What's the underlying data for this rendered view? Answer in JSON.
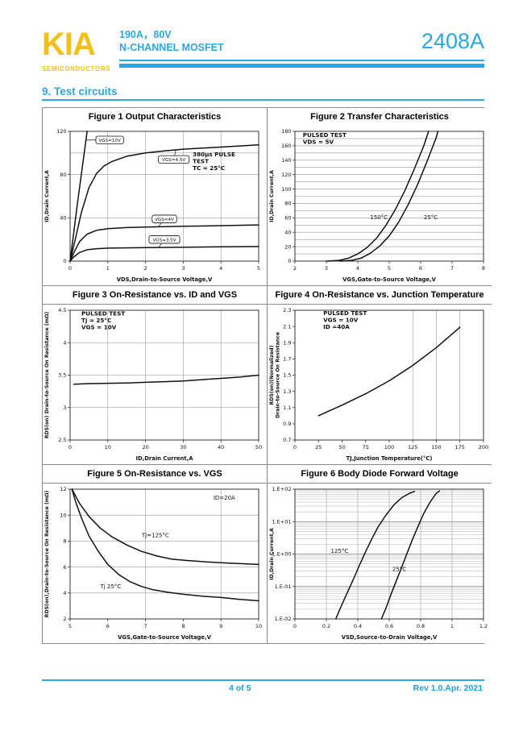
{
  "header": {
    "logo": "KIA",
    "logo_sub": "SEMICONDUCTORS",
    "subtitle_line1": "190A，80V",
    "subtitle_line2": "N-CHANNEL MOSFET",
    "part_number": "2408A",
    "accent_color": "#29A8E0",
    "logo_color": "#F2C118"
  },
  "section": {
    "title": "9. Test circuits"
  },
  "footer": {
    "page": "4 of 5",
    "rev": "Rev 1.0.Apr. 2021"
  },
  "chart_data": [
    {
      "type": "line",
      "title": "Figure 1 Output Characteristics",
      "xlabel": "VDS,Drain-to-Source Voltage,V",
      "ylabel": "ID,Drain Current,A",
      "xlim": [
        0,
        5
      ],
      "ylim": [
        0,
        120
      ],
      "xticks": [
        0,
        1,
        2,
        3,
        4,
        5
      ],
      "yticks": [
        0,
        40,
        80,
        120
      ],
      "xgrid": [
        1,
        2,
        3,
        4
      ],
      "ygrid": [
        40,
        80,
        100
      ],
      "yscale": "linear",
      "series": [
        {
          "name": "VGS=10V",
          "points": [
            [
              0,
              0
            ],
            [
              0.2,
              55
            ],
            [
              0.45,
              120
            ]
          ]
        },
        {
          "name": "VGS=4.5V",
          "points": [
            [
              0,
              0
            ],
            [
              0.15,
              22
            ],
            [
              0.3,
              45
            ],
            [
              0.5,
              68
            ],
            [
              0.7,
              81
            ],
            [
              0.9,
              88
            ],
            [
              1.1,
              92
            ],
            [
              1.5,
              97
            ],
            [
              2,
              100
            ],
            [
              2.5,
              102
            ],
            [
              3,
              103.5
            ],
            [
              3.5,
              104.5
            ],
            [
              4,
              105.5
            ],
            [
              4.5,
              106.5
            ],
            [
              5,
              107.5
            ]
          ]
        },
        {
          "name": "VGS=4V",
          "points": [
            [
              0,
              0
            ],
            [
              0.1,
              8
            ],
            [
              0.25,
              18
            ],
            [
              0.45,
              25
            ],
            [
              0.7,
              28.5
            ],
            [
              1,
              30
            ],
            [
              1.5,
              31
            ],
            [
              2,
              31.5
            ],
            [
              3,
              32.2
            ],
            [
              4,
              32.8
            ],
            [
              5,
              33.5
            ]
          ]
        },
        {
          "name": "VGS=3.5V",
          "points": [
            [
              0,
              0
            ],
            [
              0.1,
              4
            ],
            [
              0.25,
              8
            ],
            [
              0.45,
              10.5
            ],
            [
              0.7,
              11.5
            ],
            [
              1,
              12
            ],
            [
              2,
              12.5
            ],
            [
              3,
              12.8
            ],
            [
              4,
              13.2
            ],
            [
              5,
              13.5
            ]
          ]
        }
      ],
      "ann": {
        "lines": [
          "380μs PULSE",
          "TEST",
          "TC = 25°C"
        ],
        "x": 3.25,
        "y": 97
      },
      "callouts": [
        {
          "text": "VGS=10V",
          "x": 1.05,
          "y": 112,
          "tx": 0.42,
          "ty": 112
        },
        {
          "text": "VGS=4.5V",
          "x": 2.75,
          "y": 94,
          "tx": 2.8,
          "ty": 102.5
        },
        {
          "text": "VGS=4V",
          "x": 2.5,
          "y": 39,
          "tx": 2.35,
          "ty": 32
        },
        {
          "text": "VGS=3.5V",
          "x": 2.5,
          "y": 20,
          "tx": 2.35,
          "ty": 12.7
        }
      ]
    },
    {
      "type": "line",
      "title": "Figure 2 Transfer Characteristics",
      "xlabel": "VGS,Gate-to-Source Voltage,V",
      "ylabel": "ID,Drain Current,A",
      "xlim": [
        2,
        8
      ],
      "ylim": [
        0,
        180
      ],
      "xticks": [
        2,
        3,
        4,
        5,
        6,
        7,
        8
      ],
      "yticks": [
        0,
        20,
        40,
        60,
        80,
        100,
        120,
        140,
        160,
        180
      ],
      "ygrid_step": 10,
      "yscale": "linear",
      "series": [
        {
          "name": "150°C",
          "points": [
            [
              3.0,
              0
            ],
            [
              3.4,
              1
            ],
            [
              3.7,
              4
            ],
            [
              4,
              10
            ],
            [
              4.3,
              19
            ],
            [
              4.6,
              32
            ],
            [
              4.9,
              50
            ],
            [
              5.2,
              72
            ],
            [
              5.5,
              98
            ],
            [
              5.8,
              128
            ],
            [
              6.1,
              160
            ],
            [
              6.25,
              180
            ]
          ]
        },
        {
          "name": "25°C",
          "points": [
            [
              3.45,
              0
            ],
            [
              3.8,
              1
            ],
            [
              4.1,
              4
            ],
            [
              4.4,
              11
            ],
            [
              4.7,
              21
            ],
            [
              5,
              35
            ],
            [
              5.3,
              54
            ],
            [
              5.6,
              78
            ],
            [
              5.9,
              106
            ],
            [
              6.2,
              138
            ],
            [
              6.5,
              172
            ],
            [
              6.55,
              180
            ]
          ]
        }
      ],
      "ann": {
        "lines": [
          "PULSED TEST",
          "VDS = 5V"
        ],
        "x": 2.25,
        "y": 172
      },
      "labels": [
        {
          "text": "150°C",
          "x": 4.95,
          "y": 58,
          "anchor": "end"
        },
        {
          "text": "25°C",
          "x": 6.1,
          "y": 58,
          "anchor": "start"
        }
      ]
    },
    {
      "type": "line",
      "title": "Figure 3 On-Resistance vs. ID and VGS",
      "xlabel": "ID,Drain Current,A",
      "ylabel": "RDS(on) Drain-to-Source On Resistance (mΩ)",
      "xlim": [
        0,
        50
      ],
      "ylim": [
        2.5,
        4.5
      ],
      "xticks": [
        0,
        10,
        20,
        30,
        40,
        50
      ],
      "yticks": [
        2.5,
        3,
        3.5,
        4,
        4.5
      ],
      "xgrid": [
        10,
        20,
        30,
        40
      ],
      "ygrid": [
        3,
        3.5,
        4
      ],
      "yscale": "linear",
      "series": [
        {
          "name": "RDS(on)",
          "points": [
            [
              1,
              3.36
            ],
            [
              5,
              3.37
            ],
            [
              10,
              3.375
            ],
            [
              15,
              3.38
            ],
            [
              20,
              3.39
            ],
            [
              25,
              3.4
            ],
            [
              30,
              3.41
            ],
            [
              35,
              3.43
            ],
            [
              40,
              3.45
            ],
            [
              45,
              3.47
            ],
            [
              50,
              3.5
            ]
          ]
        }
      ],
      "ann": {
        "lines": [
          "PULSED TEST",
          "Tj = 25°C",
          "VGS = 10V"
        ],
        "x": 3,
        "y": 4.42
      }
    },
    {
      "type": "line",
      "title": "Figure 4 On-Resistance vs. Junction Temperature",
      "xlabel": "TJ,Junction Temperature(°C)",
      "ylabel": "RDS(on)(Normalized)",
      "ylabel2": "Drain-to-Source On Resistance",
      "xlim": [
        0,
        200
      ],
      "ylim": [
        0.7,
        2.3
      ],
      "xticks": [
        0,
        25,
        50,
        75,
        100,
        125,
        150,
        175,
        200
      ],
      "yticks": [
        0.7,
        0.9,
        1.1,
        1.3,
        1.5,
        1.7,
        1.9,
        2.1,
        2.3
      ],
      "xgrid": [
        125,
        150,
        175
      ],
      "yscale": "linear",
      "series": [
        {
          "name": "normalized RDS(on)",
          "points": [
            [
              25,
              1.0
            ],
            [
              50,
              1.13
            ],
            [
              75,
              1.27
            ],
            [
              100,
              1.43
            ],
            [
              125,
              1.62
            ],
            [
              150,
              1.84
            ],
            [
              175,
              2.09
            ]
          ]
        }
      ],
      "ann": {
        "lines": [
          "PULSED TEST",
          "VGS = 10V",
          "ID =40A"
        ],
        "x": 30,
        "y": 2.24
      }
    },
    {
      "type": "line",
      "title": "Figure 5 On-Resistance vs. VGS",
      "xlabel": "VGS,Gate-to-Source Voltage,V",
      "ylabel": "RDS(on),Drain-to-Source On Resistance (mΩ)",
      "xlim": [
        5,
        10
      ],
      "ylim": [
        2,
        12
      ],
      "xticks": [
        5,
        6,
        7,
        8,
        9,
        10
      ],
      "yticks": [
        2,
        4,
        6,
        8,
        10,
        12
      ],
      "xgrid": [
        7,
        9
      ],
      "ygrid": [
        4,
        6,
        8,
        10
      ],
      "yscale": "linear",
      "series": [
        {
          "name": "Tj=125°C",
          "points": [
            [
              5.05,
              12
            ],
            [
              5.25,
              10.9
            ],
            [
              5.5,
              9.9
            ],
            [
              5.8,
              9.0
            ],
            [
              6.1,
              8.35
            ],
            [
              6.5,
              7.7
            ],
            [
              6.9,
              7.2
            ],
            [
              7.3,
              6.85
            ],
            [
              7.7,
              6.6
            ],
            [
              8.1,
              6.5
            ],
            [
              8.6,
              6.4
            ],
            [
              9.2,
              6.3
            ],
            [
              10,
              6.2
            ]
          ]
        },
        {
          "name": "Tj 25°C",
          "points": [
            [
              5.05,
              12
            ],
            [
              5.15,
              11
            ],
            [
              5.3,
              9.8
            ],
            [
              5.5,
              8.4
            ],
            [
              5.75,
              7.2
            ],
            [
              6.0,
              6.2
            ],
            [
              6.3,
              5.4
            ],
            [
              6.6,
              4.85
            ],
            [
              6.9,
              4.5
            ],
            [
              7.2,
              4.25
            ],
            [
              7.6,
              4.05
            ],
            [
              8,
              3.9
            ],
            [
              8.5,
              3.75
            ],
            [
              9,
              3.65
            ],
            [
              9.5,
              3.5
            ],
            [
              10,
              3.4
            ]
          ]
        }
      ],
      "labels": [
        {
          "text": "ID=20A",
          "x": 8.8,
          "y": 11.2,
          "anchor": "start"
        },
        {
          "text": "Tj=125°C",
          "x": 6.9,
          "y": 8.3,
          "anchor": "start"
        },
        {
          "text": "Tj 25°C",
          "x": 5.8,
          "y": 4.35,
          "anchor": "start"
        }
      ]
    },
    {
      "type": "line",
      "title": "Figure 6 Body Diode Forward Voltage",
      "xlabel": "VSD,Source-to-Drain Voltage,V",
      "ylabel": "ID,Drain Current,A",
      "xlim": [
        0,
        1.2
      ],
      "ylim": [
        0.01,
        100
      ],
      "xticks": [
        0,
        0.2,
        0.4,
        0.6,
        0.8,
        1,
        1.2
      ],
      "xtick_labels": [
        "0",
        "0.2",
        "0.4",
        "0.6",
        "0.8",
        "1",
        "1.2"
      ],
      "yticks": [
        100,
        10,
        1,
        0.1,
        0.01
      ],
      "ytick_labels": [
        "1.E+02",
        "1.E+01",
        "1.E+00",
        "1.E-01",
        "1.E-02"
      ],
      "xgrid": [
        0.2,
        0.4,
        0.6,
        0.8,
        1
      ],
      "ygrid_log_minor": true,
      "yscale": "log",
      "series": [
        {
          "name": "125°C",
          "points": [
            [
              0.26,
              0.01
            ],
            [
              0.29,
              0.022
            ],
            [
              0.33,
              0.06
            ],
            [
              0.37,
              0.16
            ],
            [
              0.41,
              0.45
            ],
            [
              0.45,
              1.2
            ],
            [
              0.49,
              3
            ],
            [
              0.53,
              7
            ],
            [
              0.58,
              16
            ],
            [
              0.63,
              33
            ],
            [
              0.68,
              55
            ],
            [
              0.73,
              75
            ],
            [
              0.76,
              85
            ]
          ]
        },
        {
          "name": "25°C",
          "points": [
            [
              0.55,
              0.01
            ],
            [
              0.58,
              0.022
            ],
            [
              0.61,
              0.055
            ],
            [
              0.645,
              0.15
            ],
            [
              0.68,
              0.4
            ],
            [
              0.715,
              1.1
            ],
            [
              0.75,
              3
            ],
            [
              0.785,
              7.5
            ],
            [
              0.82,
              18
            ],
            [
              0.86,
              40
            ],
            [
              0.9,
              75
            ],
            [
              0.92,
              88
            ]
          ]
        }
      ],
      "labels": [
        {
          "text": "125°C",
          "x": 0.34,
          "y": 1.1,
          "anchor": "end"
        },
        {
          "text": "25°C",
          "x": 0.62,
          "y": 0.3,
          "anchor": "start"
        }
      ]
    }
  ]
}
